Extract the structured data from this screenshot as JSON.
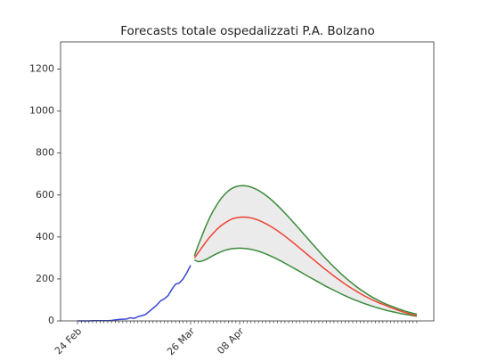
{
  "chart_data": {
    "type": "line",
    "title": "Forecasts totale ospedalizzati P.A. Bolzano",
    "categories": [
      "24 Feb",
      null,
      null,
      null,
      null,
      null,
      null,
      null,
      null,
      null,
      null,
      null,
      null,
      null,
      null,
      null,
      null,
      null,
      null,
      null,
      null,
      null,
      null,
      null,
      null,
      null,
      null,
      null,
      null,
      null,
      "26 Mar",
      null,
      null,
      null,
      null,
      null,
      null,
      null,
      null,
      null,
      null,
      null,
      null,
      "08 Apr",
      null,
      null,
      null,
      null,
      null,
      null,
      null,
      null,
      null,
      null,
      null,
      null,
      null,
      null,
      null,
      null,
      null,
      null,
      null,
      null,
      null,
      null,
      null,
      null,
      null,
      null,
      null,
      null,
      null,
      null,
      null,
      null,
      null,
      null,
      null,
      null,
      null,
      null,
      null,
      null,
      null,
      null,
      null,
      null,
      null,
      null,
      null
    ],
    "series": [
      {
        "color": "#3a46d6",
        "values": [
          0,
          0,
          0,
          0,
          1,
          1,
          1,
          1,
          1,
          2,
          5,
          7,
          8,
          9,
          15,
          12,
          20,
          25,
          30,
          45,
          60,
          75,
          95,
          105,
          120,
          150,
          175,
          180,
          200,
          230,
          265,
          null,
          null,
          null,
          null,
          null,
          null,
          null,
          null,
          null,
          null,
          null,
          null,
          null,
          null,
          null,
          null,
          null,
          null,
          null,
          null,
          null,
          null,
          null,
          null,
          null,
          null,
          null,
          null,
          null,
          null,
          null,
          null,
          null,
          null,
          null,
          null,
          null,
          null,
          null,
          null,
          null,
          null,
          null,
          null,
          null,
          null,
          null,
          null,
          null,
          null,
          null,
          null,
          null,
          null,
          null,
          null,
          null,
          null,
          null,
          null
        ]
      },
      {
        "color": "#3a8a3a",
        "values": [
          null,
          null,
          null,
          null,
          null,
          null,
          null,
          null,
          null,
          null,
          null,
          null,
          null,
          null,
          null,
          null,
          null,
          null,
          null,
          null,
          null,
          null,
          null,
          null,
          null,
          null,
          null,
          null,
          null,
          null,
          null,
          310,
          360,
          405,
          450,
          490,
          525,
          555,
          582,
          603,
          620,
          632,
          640,
          644,
          645,
          643,
          638,
          631,
          622,
          611,
          598,
          584,
          568,
          551,
          533,
          514,
          495,
          475,
          455,
          435,
          414,
          394,
          373,
          353,
          333,
          313,
          294,
          275,
          257,
          240,
          223,
          207,
          192,
          177,
          163,
          150,
          138,
          126,
          115,
          105,
          96,
          87,
          79,
          72,
          65,
          58,
          52,
          46,
          41,
          36,
          32
        ]
      },
      {
        "color": "#3a8a3a",
        "values": [
          null,
          null,
          null,
          null,
          null,
          null,
          null,
          null,
          null,
          null,
          null,
          null,
          null,
          null,
          null,
          null,
          null,
          null,
          null,
          null,
          null,
          null,
          null,
          null,
          null,
          null,
          null,
          null,
          null,
          null,
          null,
          290,
          282,
          285,
          292,
          302,
          312,
          321,
          329,
          336,
          341,
          344,
          346,
          347,
          346,
          344,
          341,
          337,
          332,
          326,
          319,
          311,
          303,
          294,
          285,
          275,
          265,
          255,
          245,
          235,
          224,
          214,
          204,
          194,
          184,
          174,
          164,
          155,
          146,
          137,
          128,
          120,
          112,
          104,
          97,
          90,
          83,
          77,
          71,
          65,
          60,
          55,
          50,
          46,
          42,
          38,
          34,
          31,
          28,
          25,
          22
        ]
      },
      {
        "color": "#ee4433",
        "values": [
          null,
          null,
          null,
          null,
          null,
          null,
          null,
          null,
          null,
          null,
          null,
          null,
          null,
          null,
          null,
          null,
          null,
          null,
          null,
          null,
          null,
          null,
          null,
          null,
          null,
          null,
          null,
          null,
          null,
          null,
          null,
          300,
          325,
          350,
          375,
          398,
          418,
          437,
          453,
          466,
          477,
          486,
          491,
          494,
          495,
          494,
          491,
          486,
          480,
          472,
          463,
          453,
          442,
          430,
          417,
          404,
          390,
          376,
          361,
          346,
          331,
          316,
          301,
          286,
          271,
          256,
          242,
          228,
          214,
          201,
          188,
          175,
          163,
          152,
          141,
          130,
          120,
          111,
          102,
          94,
          86,
          79,
          72,
          64,
          58,
          51,
          45,
          39,
          34,
          29,
          25
        ]
      }
    ],
    "band_fill": "#ebebeb",
    "ylim": [
      0,
      1330
    ],
    "yticks": [
      0,
      200,
      400,
      600,
      800,
      1000,
      1200
    ]
  }
}
